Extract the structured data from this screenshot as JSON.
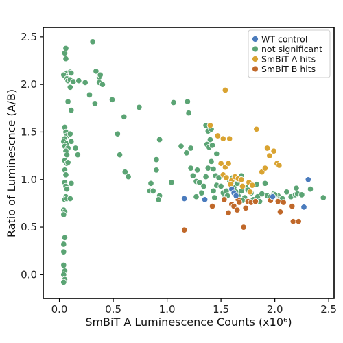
{
  "chart_data": {
    "type": "scatter",
    "xlabel": "SmBiT A Luminescence Counts (x10⁶)",
    "ylabel": "Ratio of Luminescnce (A/B)",
    "xlim": [
      -0.15,
      2.55
    ],
    "ylim": [
      -0.25,
      2.6
    ],
    "x_ticks": [
      0.0,
      0.5,
      1.0,
      1.5,
      2.0,
      2.5
    ],
    "x_tick_labels": [
      "0.0",
      "0.5",
      "1.0",
      "1.5",
      "2.0",
      "2.5"
    ],
    "y_ticks": [
      0.0,
      0.5,
      1.0,
      1.5,
      2.0,
      2.5
    ],
    "y_tick_labels": [
      "0.0",
      "0.5",
      "1.0",
      "1.5",
      "2.0",
      "2.5"
    ],
    "grid": false,
    "legend_position": "top-right",
    "series": [
      {
        "name": "not significant",
        "color": "#5ba474",
        "points": [
          [
            0.05,
            2.33
          ],
          [
            0.06,
            2.27
          ],
          [
            0.06,
            2.38
          ],
          [
            0.07,
            2.12
          ],
          [
            0.1,
            2.13
          ],
          [
            0.11,
            2.12
          ],
          [
            0.04,
            2.1
          ],
          [
            0.07,
            2.06
          ],
          [
            0.08,
            2.04
          ],
          [
            0.1,
            2.05
          ],
          [
            0.13,
            2.03
          ],
          [
            0.1,
            1.97
          ],
          [
            0.08,
            1.82
          ],
          [
            0.11,
            1.73
          ],
          [
            0.05,
            1.55
          ],
          [
            0.06,
            1.5
          ],
          [
            0.07,
            1.46
          ],
          [
            0.05,
            1.43
          ],
          [
            0.04,
            1.4
          ],
          [
            0.07,
            1.38
          ],
          [
            0.05,
            1.35
          ],
          [
            0.08,
            1.33
          ],
          [
            0.06,
            1.3
          ],
          [
            0.07,
            1.26
          ],
          [
            0.05,
            1.2
          ],
          [
            0.07,
            1.17
          ],
          [
            0.08,
            1.18
          ],
          [
            0.05,
            1.1
          ],
          [
            0.06,
            1.05
          ],
          [
            0.05,
            0.97
          ],
          [
            0.06,
            0.93
          ],
          [
            0.07,
            0.9
          ],
          [
            0.06,
            0.82
          ],
          [
            0.05,
            0.79
          ],
          [
            0.07,
            0.8
          ],
          [
            0.04,
            0.68
          ],
          [
            0.05,
            0.66
          ],
          [
            0.04,
            0.63
          ],
          [
            0.05,
            0.39
          ],
          [
            0.04,
            0.32
          ],
          [
            0.04,
            0.24
          ],
          [
            0.04,
            0.1
          ],
          [
            0.05,
            0.04
          ],
          [
            0.04,
            0.0
          ],
          [
            0.05,
            -0.05
          ],
          [
            0.04,
            -0.08
          ],
          [
            0.1,
            1.48
          ],
          [
            0.11,
            1.4
          ],
          [
            0.15,
            1.33
          ],
          [
            0.17,
            1.26
          ],
          [
            0.11,
            0.96
          ],
          [
            0.1,
            0.8
          ],
          [
            0.18,
            2.04
          ],
          [
            0.24,
            2.02
          ],
          [
            0.31,
            2.45
          ],
          [
            0.34,
            2.14
          ],
          [
            0.37,
            2.08
          ],
          [
            0.38,
            2.1
          ],
          [
            0.37,
            2.02
          ],
          [
            0.4,
            2.0
          ],
          [
            0.28,
            1.89
          ],
          [
            0.33,
            1.8
          ],
          [
            0.49,
            1.84
          ],
          [
            0.54,
            1.48
          ],
          [
            0.56,
            1.26
          ],
          [
            0.6,
            1.66
          ],
          [
            0.61,
            1.08
          ],
          [
            0.64,
            1.03
          ],
          [
            0.74,
            1.76
          ],
          [
            0.85,
            0.96
          ],
          [
            0.84,
            0.88
          ],
          [
            0.87,
            0.88
          ],
          [
            0.9,
            1.21
          ],
          [
            0.9,
            1.1
          ],
          [
            0.93,
            0.83
          ],
          [
            0.92,
            0.79
          ],
          [
            0.93,
            1.42
          ],
          [
            1.04,
            0.97
          ],
          [
            1.06,
            1.81
          ],
          [
            1.19,
            1.82
          ],
          [
            1.2,
            1.7
          ],
          [
            1.13,
            1.35
          ],
          [
            1.18,
            1.28
          ],
          [
            1.22,
            1.12
          ],
          [
            1.24,
            1.04
          ],
          [
            1.22,
            1.33
          ],
          [
            1.28,
            1.1
          ],
          [
            1.27,
            0.98
          ],
          [
            1.27,
            0.82
          ],
          [
            1.3,
            0.97
          ],
          [
            1.32,
            0.86
          ],
          [
            1.34,
            0.93
          ],
          [
            1.36,
            1.57
          ],
          [
            1.38,
            1.51
          ],
          [
            1.41,
            1.53
          ],
          [
            1.4,
            1.42
          ],
          [
            1.37,
            1.37
          ],
          [
            1.39,
            1.34
          ],
          [
            1.42,
            1.36
          ],
          [
            1.46,
            1.27
          ],
          [
            1.41,
            1.19
          ],
          [
            1.38,
            1.12
          ],
          [
            1.43,
            1.11
          ],
          [
            1.45,
            1.04
          ],
          [
            1.36,
            1.03
          ],
          [
            1.48,
            1.02
          ],
          [
            1.46,
            0.94
          ],
          [
            1.5,
            0.93
          ],
          [
            1.43,
            0.88
          ],
          [
            1.52,
            0.86
          ],
          [
            1.44,
            0.81
          ],
          [
            1.55,
            0.88
          ],
          [
            1.56,
            0.83
          ],
          [
            1.53,
            0.8
          ],
          [
            1.58,
            0.99
          ],
          [
            1.6,
            0.95
          ],
          [
            1.61,
            1.02
          ],
          [
            1.62,
            0.92
          ],
          [
            1.65,
            0.96
          ],
          [
            1.66,
            1.0
          ],
          [
            1.69,
            1.04
          ],
          [
            1.64,
            0.87
          ],
          [
            1.69,
            0.88
          ],
          [
            1.66,
            0.83
          ],
          [
            1.72,
            0.81
          ],
          [
            1.7,
            0.78
          ],
          [
            1.73,
            0.92
          ],
          [
            1.75,
            0.89
          ],
          [
            1.78,
            0.86
          ],
          [
            1.8,
            0.79
          ],
          [
            1.84,
            0.82
          ],
          [
            1.86,
            0.77
          ],
          [
            1.88,
            0.85
          ],
          [
            1.91,
            0.96
          ],
          [
            1.93,
            0.83
          ],
          [
            1.96,
            0.82
          ],
          [
            1.99,
            0.85
          ],
          [
            2.03,
            0.83
          ],
          [
            2.04,
            0.79
          ],
          [
            2.07,
            0.8
          ],
          [
            2.11,
            0.87
          ],
          [
            2.15,
            0.82
          ],
          [
            2.19,
            0.84
          ],
          [
            2.2,
            0.91
          ],
          [
            2.21,
            0.85
          ],
          [
            2.25,
            0.84
          ],
          [
            2.33,
            0.9
          ],
          [
            2.45,
            0.81
          ],
          [
            2.0,
            0.84
          ],
          [
            1.83,
            0.95
          ]
        ]
      },
      {
        "name": "SmBiT A hits",
        "color": "#d9a331",
        "points": [
          [
            1.54,
            1.94
          ],
          [
            1.4,
            1.57
          ],
          [
            1.47,
            1.46
          ],
          [
            1.52,
            1.43
          ],
          [
            1.58,
            1.43
          ],
          [
            1.83,
            1.53
          ],
          [
            1.5,
            1.17
          ],
          [
            1.54,
            1.13
          ],
          [
            1.57,
            1.17
          ],
          [
            1.52,
            1.05
          ],
          [
            1.55,
            1.02
          ],
          [
            1.6,
            0.99
          ],
          [
            1.63,
            1.03
          ],
          [
            1.66,
            1.01
          ],
          [
            1.69,
            1.0
          ],
          [
            1.7,
            0.93
          ],
          [
            1.76,
            0.97
          ],
          [
            1.79,
            0.94
          ],
          [
            1.77,
            0.87
          ],
          [
            1.88,
            1.08
          ],
          [
            1.91,
            1.12
          ],
          [
            1.93,
            1.33
          ],
          [
            1.95,
            1.25
          ],
          [
            1.99,
            1.3
          ],
          [
            2.02,
            1.17
          ],
          [
            2.04,
            1.15
          ],
          [
            1.59,
            0.95
          ]
        ]
      },
      {
        "name": "SmBiT B hits",
        "color": "#c0682a",
        "points": [
          [
            1.16,
            0.47
          ],
          [
            1.42,
            0.72
          ],
          [
            1.53,
            0.79
          ],
          [
            1.57,
            0.65
          ],
          [
            1.6,
            0.74
          ],
          [
            1.62,
            0.72
          ],
          [
            1.65,
            0.68
          ],
          [
            1.66,
            0.79
          ],
          [
            1.67,
            0.76
          ],
          [
            1.71,
            0.5
          ],
          [
            1.73,
            0.7
          ],
          [
            1.75,
            0.77
          ],
          [
            1.78,
            0.76
          ],
          [
            1.82,
            0.77
          ],
          [
            1.96,
            0.78
          ],
          [
            2.03,
            0.77
          ],
          [
            2.05,
            0.66
          ],
          [
            2.08,
            0.76
          ],
          [
            2.16,
            0.72
          ],
          [
            2.17,
            0.56
          ],
          [
            2.22,
            0.56
          ]
        ]
      },
      {
        "name": "WT control",
        "color": "#4a7bbd",
        "points": [
          [
            1.16,
            0.8
          ],
          [
            1.35,
            0.79
          ],
          [
            1.6,
            0.9
          ],
          [
            1.62,
            0.86
          ],
          [
            1.64,
            0.83
          ],
          [
            1.98,
            0.82
          ],
          [
            2.27,
            0.71
          ],
          [
            2.31,
            1.0
          ]
        ]
      }
    ],
    "legend_order": [
      "WT control",
      "not significant",
      "SmBiT A hits",
      "SmBiT B hits"
    ]
  }
}
